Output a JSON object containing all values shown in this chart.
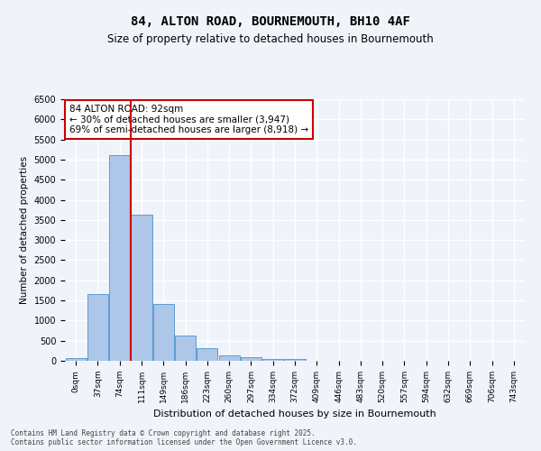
{
  "title": "84, ALTON ROAD, BOURNEMOUTH, BH10 4AF",
  "subtitle": "Size of property relative to detached houses in Bournemouth",
  "xlabel": "Distribution of detached houses by size in Bournemouth",
  "ylabel": "Number of detached properties",
  "bar_values": [
    75,
    1650,
    5100,
    3620,
    1420,
    620,
    310,
    130,
    80,
    50,
    50,
    0,
    0,
    0,
    0,
    0,
    0,
    0,
    0,
    0,
    0
  ],
  "bar_labels": [
    "0sqm",
    "37sqm",
    "74sqm",
    "111sqm",
    "149sqm",
    "186sqm",
    "223sqm",
    "260sqm",
    "297sqm",
    "334sqm",
    "372sqm",
    "409sqm",
    "446sqm",
    "483sqm",
    "520sqm",
    "557sqm",
    "594sqm",
    "632sqm",
    "669sqm",
    "706sqm",
    "743sqm"
  ],
  "bar_color": "#aec6e8",
  "bar_edge_color": "#5b9bd5",
  "vline_x": 2.5,
  "vline_color": "#cc0000",
  "ylim": [
    0,
    6500
  ],
  "yticks": [
    0,
    500,
    1000,
    1500,
    2000,
    2500,
    3000,
    3500,
    4000,
    4500,
    5000,
    5500,
    6000,
    6500
  ],
  "annotation_text": "84 ALTON ROAD: 92sqm\n← 30% of detached houses are smaller (3,947)\n69% of semi-detached houses are larger (8,918) →",
  "annotation_box_color": "#ffffff",
  "annotation_box_edge_color": "#cc0000",
  "footer_text": "Contains HM Land Registry data © Crown copyright and database right 2025.\nContains public sector information licensed under the Open Government Licence v3.0.",
  "background_color": "#f0f4fa",
  "grid_color": "#ffffff"
}
